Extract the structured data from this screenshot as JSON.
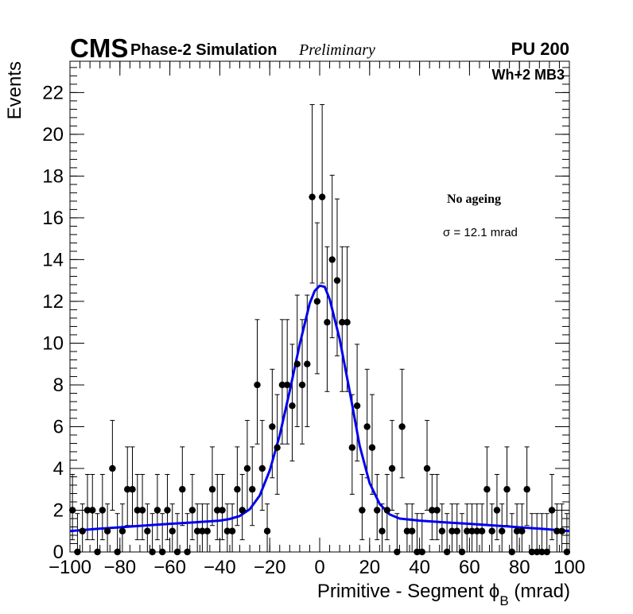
{
  "header": {
    "experiment": "CMS",
    "simulation": "Phase-2 Simulation",
    "status": "Preliminary",
    "pileup": "PU 200"
  },
  "panel": {
    "station": "Wh+2 MB3"
  },
  "legend": {
    "condition": "No ageing",
    "sigma_label": "σ = 12.1 mrad"
  },
  "chart_data": {
    "type": "scatter",
    "title": "",
    "xlabel": "Primitive - Segment ϕ",
    "xlabel_sub": "B",
    "xlabel_unit": "(mrad)",
    "ylabel": "Events",
    "xlim": [
      -100,
      100
    ],
    "ylim": [
      0,
      23.5
    ],
    "x_ticks": [
      -100,
      -80,
      -60,
      -40,
      -20,
      0,
      20,
      40,
      60,
      80,
      100
    ],
    "x_tick_labels": [
      "−100",
      "−80",
      "−60",
      "−40",
      "−20",
      "0",
      "20",
      "40",
      "60",
      "80",
      "100"
    ],
    "y_ticks": [
      0,
      2,
      4,
      6,
      8,
      10,
      12,
      14,
      16,
      18,
      20,
      22
    ],
    "y_tick_labels": [
      "0",
      "2",
      "4",
      "6",
      "8",
      "10",
      "12",
      "14",
      "16",
      "18",
      "20",
      "22"
    ],
    "bin_width": 2,
    "series": [
      {
        "name": "Data",
        "style": "markers with Poisson error bars",
        "color": "#000000",
        "x": [
          -99,
          -97,
          -95,
          -93,
          -91,
          -89,
          -87,
          -85,
          -83,
          -81,
          -79,
          -77,
          -75,
          -73,
          -71,
          -69,
          -67,
          -65,
          -63,
          -61,
          -59,
          -57,
          -55,
          -53,
          -51,
          -49,
          -47,
          -45,
          -43,
          -41,
          -39,
          -37,
          -35,
          -33,
          -31,
          -29,
          -27,
          -25,
          -23,
          -21,
          -19,
          -17,
          -15,
          -13,
          -11,
          -9,
          -7,
          -5,
          -3,
          -1,
          1,
          3,
          5,
          7,
          9,
          11,
          13,
          15,
          17,
          19,
          21,
          23,
          25,
          27,
          29,
          31,
          33,
          35,
          37,
          39,
          41,
          43,
          45,
          47,
          49,
          51,
          53,
          55,
          57,
          59,
          61,
          63,
          65,
          67,
          69,
          71,
          73,
          75,
          77,
          79,
          81,
          83,
          85,
          87,
          89,
          91,
          93,
          95,
          97,
          99
        ],
        "values": [
          2,
          0,
          1,
          2,
          2,
          0,
          2,
          1,
          4,
          0,
          1,
          3,
          3,
          2,
          2,
          1,
          0,
          2,
          0,
          2,
          1,
          0,
          3,
          0,
          2,
          1,
          1,
          1,
          3,
          2,
          2,
          1,
          1,
          3,
          2,
          4,
          3,
          8,
          4,
          1,
          6,
          5,
          8,
          8,
          7,
          9,
          8,
          9,
          17,
          12,
          17,
          11,
          14,
          13,
          11,
          11,
          5,
          7,
          2,
          6,
          5,
          2,
          1,
          2,
          4,
          0,
          6,
          1,
          1,
          0,
          0,
          4,
          2,
          2,
          1,
          0,
          1,
          1,
          0,
          1,
          1,
          1,
          1,
          3,
          1,
          2,
          1,
          3,
          0,
          1,
          1,
          3,
          0,
          0,
          0,
          0,
          2,
          1,
          1,
          0
        ]
      },
      {
        "name": "Fit",
        "style": "line",
        "color": "#0000ee",
        "x": [
          -100,
          -90,
          -80,
          -70,
          -60,
          -50,
          -40,
          -36,
          -32,
          -28,
          -24,
          -20,
          -16,
          -12,
          -8,
          -4,
          -2,
          0,
          2,
          4,
          8,
          12,
          16,
          20,
          24,
          28,
          32,
          36,
          40,
          50,
          60,
          70,
          80,
          90,
          100
        ],
        "values": [
          1.0,
          1.1,
          1.18,
          1.27,
          1.35,
          1.42,
          1.5,
          1.58,
          1.72,
          2.05,
          2.7,
          3.9,
          5.6,
          7.7,
          9.95,
          11.9,
          12.5,
          12.75,
          12.7,
          12.1,
          10.2,
          7.7,
          5.1,
          3.3,
          2.3,
          1.8,
          1.6,
          1.55,
          1.5,
          1.42,
          1.35,
          1.27,
          1.18,
          1.1,
          1.0
        ]
      }
    ]
  }
}
